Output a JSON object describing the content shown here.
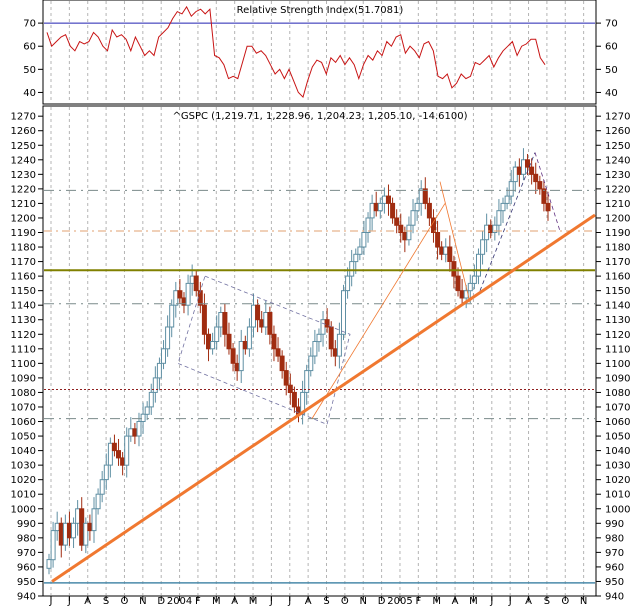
{
  "rsi_title": "Relative Strength Index(51.7081)",
  "price_title": "^GSPC (1,219.71, 1,228.96, 1,204.23, 1,205.10, -14.6100)",
  "colors": {
    "up": "#5f8fa3",
    "down": "#a02c10",
    "rsi_line": "#c81414",
    "rsi_level": "#2020b0",
    "trend": "#f07830",
    "resistance": "#808000",
    "support_dash": "#7a8a8a",
    "bottom_line": "#4a8aaa",
    "dotted_red": "#902020",
    "grid": "#b4b4b4"
  },
  "chart_data": [
    {
      "type": "line",
      "name": "rsi",
      "title": "Relative Strength Index(51.7081)",
      "ylim": [
        35,
        80
      ],
      "yticks": [
        40,
        50,
        60,
        70
      ],
      "levels": [
        70
      ],
      "values": [
        66,
        60,
        62,
        64,
        65,
        60,
        58,
        62,
        61,
        62,
        66,
        64,
        60,
        58,
        67,
        64,
        65,
        63,
        58,
        64,
        60,
        56,
        58,
        56,
        64,
        66,
        68,
        72,
        75,
        74,
        77,
        73,
        75,
        76,
        74,
        76,
        56,
        55,
        52,
        46,
        47,
        46,
        53,
        60,
        60,
        57,
        58,
        56,
        52,
        48,
        50,
        46,
        50,
        45,
        40,
        38,
        45,
        51,
        54,
        53,
        48,
        55,
        53,
        56,
        52,
        55,
        52,
        46,
        52,
        56,
        54,
        58,
        56,
        62,
        60,
        64,
        65,
        57,
        60,
        58,
        55,
        61,
        62,
        58,
        47,
        46,
        48,
        42,
        44,
        48,
        46,
        47,
        53,
        52,
        54,
        56,
        51,
        55,
        58,
        60,
        62,
        56,
        60,
        61,
        63,
        63,
        55,
        52
      ]
    },
    {
      "type": "candlestick",
      "name": "price",
      "title": "^GSPC (1,219.71, 1,228.96, 1,204.23, 1,205.10, -14.6100)",
      "ylim": [
        940,
        1277
      ],
      "yticks": [
        940,
        950,
        960,
        970,
        980,
        990,
        1000,
        1010,
        1020,
        1030,
        1040,
        1050,
        1060,
        1070,
        1080,
        1090,
        1100,
        1110,
        1120,
        1130,
        1140,
        1150,
        1160,
        1170,
        1180,
        1190,
        1200,
        1210,
        1220,
        1230,
        1240,
        1250,
        1260,
        1270
      ],
      "xticks": [
        "J",
        "J",
        "A",
        "S",
        "O",
        "N",
        "D",
        "2004",
        "F",
        "M",
        "A",
        "M",
        "J",
        "J",
        "A",
        "S",
        "O",
        "N",
        "D",
        "2005",
        "F",
        "M",
        "A",
        "M",
        "J",
        "J",
        "A",
        "S",
        "O",
        "N"
      ],
      "closes": [
        965,
        985,
        990,
        975,
        990,
        980,
        990,
        1000,
        975,
        990,
        985,
        1000,
        1010,
        1020,
        1030,
        1045,
        1040,
        1035,
        1030,
        1050,
        1055,
        1050,
        1060,
        1065,
        1070,
        1080,
        1090,
        1100,
        1110,
        1125,
        1140,
        1150,
        1145,
        1140,
        1155,
        1160,
        1150,
        1140,
        1120,
        1110,
        1115,
        1125,
        1135,
        1120,
        1110,
        1100,
        1095,
        1115,
        1110,
        1125,
        1140,
        1130,
        1125,
        1135,
        1120,
        1110,
        1105,
        1095,
        1085,
        1080,
        1070,
        1065,
        1080,
        1095,
        1105,
        1115,
        1120,
        1130,
        1125,
        1110,
        1105,
        1120,
        1150,
        1160,
        1170,
        1175,
        1180,
        1190,
        1200,
        1210,
        1205,
        1210,
        1215,
        1210,
        1200,
        1195,
        1190,
        1185,
        1195,
        1205,
        1210,
        1220,
        1210,
        1200,
        1190,
        1180,
        1175,
        1180,
        1170,
        1160,
        1150,
        1145,
        1150,
        1155,
        1160,
        1175,
        1185,
        1195,
        1190,
        1195,
        1205,
        1210,
        1215,
        1225,
        1235,
        1230,
        1240,
        1235,
        1230,
        1225,
        1220,
        1210,
        1205
      ],
      "trend_lines": {
        "main_support": [
          [
            942,
            950
          ],
          [
            1275,
            1202
          ]
        ],
        "resistance": 1164,
        "dashed_upper": 1219,
        "dashed_lower": 1141,
        "dashed_1062": 1062,
        "dotted_1082": 1082,
        "dashdot_1191": 1191,
        "bottom": 949
      }
    }
  ]
}
